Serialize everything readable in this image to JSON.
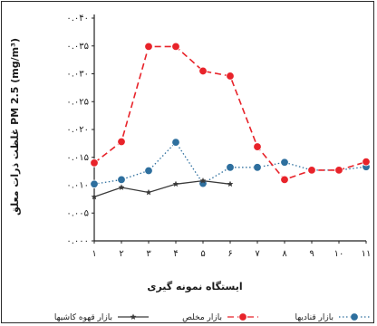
{
  "chart_data": {
    "type": "line",
    "xlabel": "ایستگاه نمونه گیری",
    "ylabel": "غلظت ذرات معلق PM 2.5 (mg/m³)",
    "x": [
      1,
      2,
      3,
      4,
      5,
      6,
      7,
      8,
      9,
      10,
      11
    ],
    "x_tick_labels": [
      "۱",
      "۲",
      "۳",
      "۴",
      "۵",
      "۶",
      "۷",
      "۸",
      "۹",
      "۱۰",
      "۱۱"
    ],
    "y_ticks": [
      0,
      0.005,
      0.01,
      0.015,
      0.02,
      0.025,
      0.03,
      0.035,
      0.04
    ],
    "y_tick_labels": [
      "۰.۰۰۰",
      "۰.۰۰۵",
      "۰.۰۱۰",
      "۰.۰۱۵",
      "۰.۰۲۰",
      "۰.۰۲۵",
      "۰.۰۳۰",
      "۰.۰۳۵",
      "۰.۰۴۰"
    ],
    "ylim": [
      0,
      0.04
    ],
    "grid": false,
    "legend_position": "bottom",
    "series": [
      {
        "name": "بازار قنادیها",
        "color": "#2e6f9e",
        "line_style": "dotted",
        "marker": "circle",
        "values": [
          0.0102,
          0.011,
          0.0126,
          0.0177,
          0.0103,
          0.0132,
          0.0132,
          0.0141,
          0.0127,
          0.0127,
          0.0133
        ]
      },
      {
        "name": "بازار مخلص",
        "color": "#e8232a",
        "line_style": "dashed",
        "marker": "circle",
        "values": [
          0.014,
          0.0178,
          0.0349,
          0.0349,
          0.0305,
          0.0296,
          0.0169,
          0.011,
          0.0127,
          0.0127,
          0.0142
        ]
      },
      {
        "name": "بازار قهوه کاشیها",
        "color": "#3a3a3a",
        "line_style": "solid",
        "marker": "star",
        "values": [
          0.0079,
          0.0096,
          0.0087,
          0.0102,
          0.0108,
          0.0102,
          null,
          null,
          null,
          null,
          null
        ]
      }
    ]
  }
}
